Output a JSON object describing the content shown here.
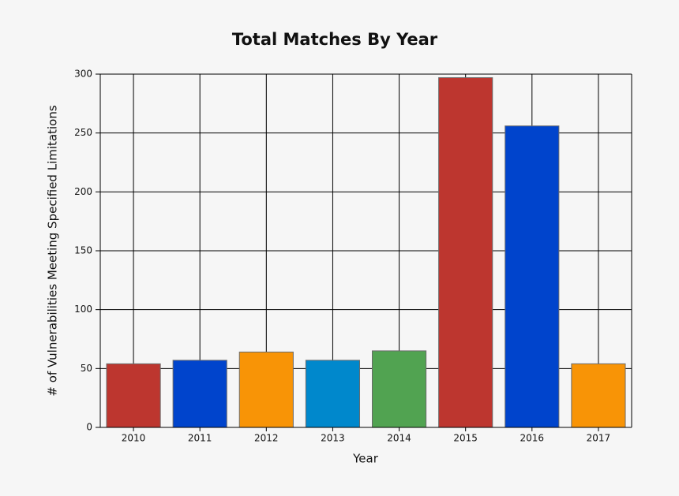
{
  "chart_data": {
    "type": "bar",
    "title": "Total Matches By Year",
    "x_label": "Year",
    "y_label": "# of Vulnerabilities Meeting Specified Limitations",
    "categories": [
      "2010",
      "2011",
      "2012",
      "2013",
      "2014",
      "2015",
      "2016",
      "2017"
    ],
    "values": [
      54,
      57,
      64,
      57,
      65,
      297,
      256,
      54
    ],
    "colors": [
      "#bd362f",
      "#0044cc",
      "#f89406",
      "#0088cc",
      "#51a351",
      "#bd362f",
      "#0044cc",
      "#f89406"
    ],
    "ylim": [
      0,
      300
    ],
    "yticks": [
      0,
      50,
      100,
      150,
      200,
      250,
      300
    ],
    "grid": true
  }
}
